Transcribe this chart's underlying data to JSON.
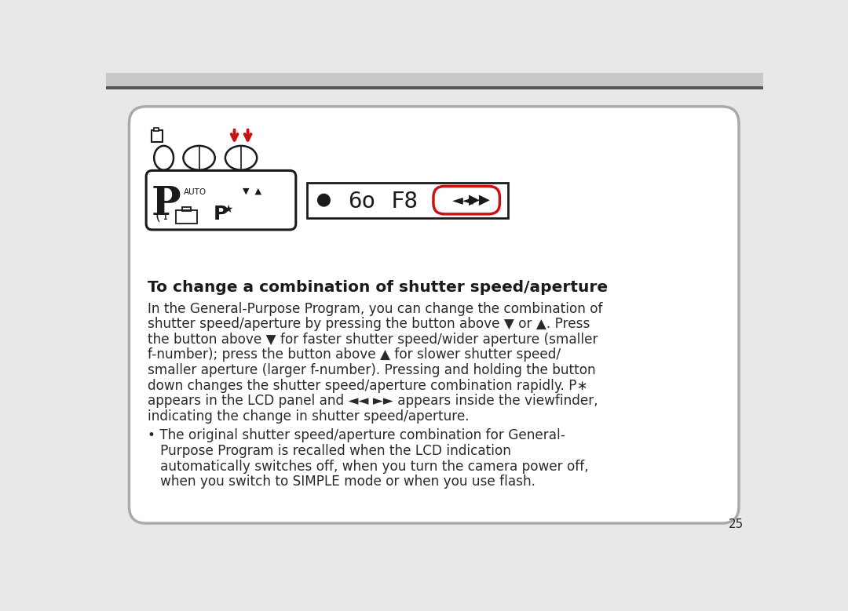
{
  "bg_top_color": "#c8c8c8",
  "bg_page_color": "#e8e8e8",
  "card_border_color": "#aaaaaa",
  "title": "To change a combination of shutter speed/aperture",
  "body_lines": [
    "In the General-Purpose Program, you can change the combination of",
    "shutter speed/aperture by pressing the button above ▼ or ▲. Press",
    "the button above ▼ for faster shutter speed/wider aperture (smaller",
    "f-number); press the button above ▲ for slower shutter speed/",
    "smaller aperture (larger f-number). Pressing and holding the button",
    "down changes the shutter speed/aperture combination rapidly. P∗",
    "appears in the LCD panel and ◄◄ ►► appears inside the viewfinder,",
    "indicating the change in shutter speed/aperture."
  ],
  "bullet_lines": [
    "• The original shutter speed/aperture combination for General-",
    "   Purpose Program is recalled when the LCD indication",
    "   automatically switches off, when you turn the camera power off,",
    "   when you switch to SIMPLE mode or when you use flash."
  ],
  "page_number": "25",
  "red_color": "#cc1111",
  "black_color": "#1a1a1a",
  "text_color": "#2a2a2a",
  "card_bg": "#f2f2f2"
}
